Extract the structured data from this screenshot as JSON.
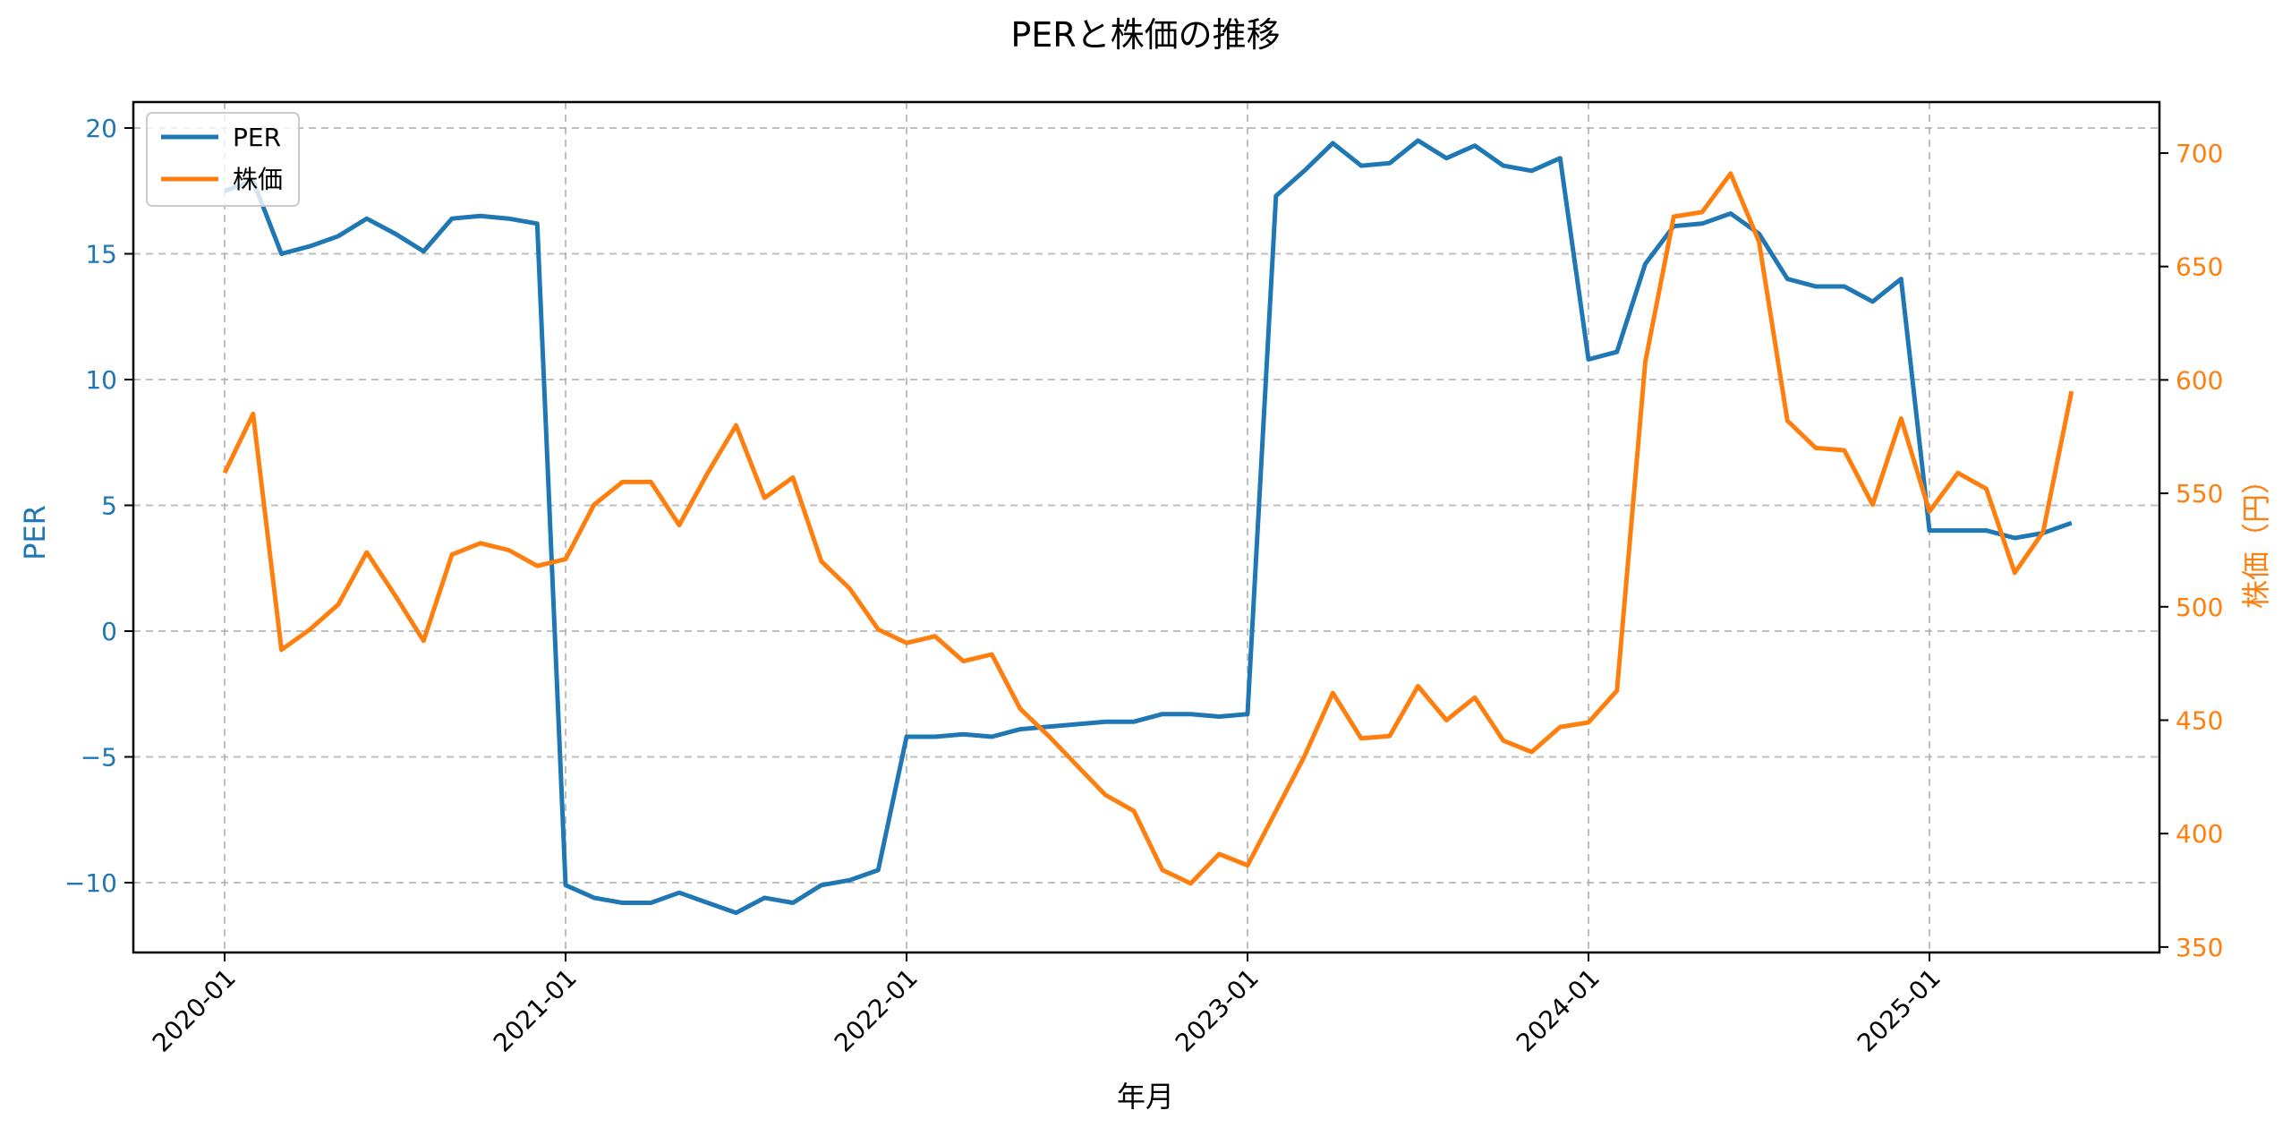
{
  "title": "PERと株価の推移",
  "xlabel": "年月",
  "ylabel_left": "PER",
  "ylabel_right": "株価（円）",
  "legend": [
    {
      "label": "PER",
      "color": "#1f77b4"
    },
    {
      "label": "株価",
      "color": "#ff7f0e"
    }
  ],
  "colors": {
    "per": "#1f77b4",
    "price": "#ff7f0e",
    "grid": "#b0b0b0",
    "axis": "#000000"
  },
  "chart_data": {
    "type": "line",
    "title": "PERと株価の推移",
    "xlabel": "年月",
    "ylabel": "PER",
    "ylabel_right": "株価（円）",
    "x_ticks": [
      "2020-01",
      "2021-01",
      "2022-01",
      "2023-01",
      "2024-01",
      "2025-01"
    ],
    "y_ticks_left": [
      -10,
      -5,
      0,
      5,
      10,
      15,
      20
    ],
    "y_ticks_right": [
      350,
      400,
      450,
      500,
      550,
      600,
      650,
      700
    ],
    "ylim_left": [
      -12.7,
      20.9
    ],
    "ylim_right": [
      345,
      720
    ],
    "grid": true,
    "legend_position": "upper left",
    "x": [
      "2020-01",
      "2020-02",
      "2020-03",
      "2020-04",
      "2020-05",
      "2020-06",
      "2020-07",
      "2020-08",
      "2020-09",
      "2020-10",
      "2020-11",
      "2020-12",
      "2021-01",
      "2021-02",
      "2021-03",
      "2021-04",
      "2021-05",
      "2021-06",
      "2021-07",
      "2021-08",
      "2021-09",
      "2021-10",
      "2021-11",
      "2021-12",
      "2022-01",
      "2022-02",
      "2022-03",
      "2022-04",
      "2022-05",
      "2022-06",
      "2022-07",
      "2022-08",
      "2022-09",
      "2022-10",
      "2022-11",
      "2022-12",
      "2023-01",
      "2023-02",
      "2023-03",
      "2023-04",
      "2023-05",
      "2023-06",
      "2023-07",
      "2023-08",
      "2023-09",
      "2023-10",
      "2023-11",
      "2023-12",
      "2024-01",
      "2024-02",
      "2024-03",
      "2024-04",
      "2024-05",
      "2024-06",
      "2024-07",
      "2024-08",
      "2024-09",
      "2024-10",
      "2024-11",
      "2024-12",
      "2025-01",
      "2025-02",
      "2025-03",
      "2025-04",
      "2025-05",
      "2025-06"
    ],
    "series": [
      {
        "name": "PER",
        "axis": "left",
        "color": "#1f77b4",
        "values": [
          17.5,
          17.9,
          15.0,
          15.3,
          15.7,
          16.4,
          15.8,
          15.1,
          16.4,
          16.5,
          16.4,
          16.2,
          -10.1,
          -10.6,
          -10.8,
          -10.8,
          -10.4,
          -10.8,
          -11.2,
          -10.6,
          -10.8,
          -10.1,
          -9.9,
          -9.5,
          -4.2,
          -4.2,
          -4.1,
          -4.2,
          -3.9,
          -3.8,
          -3.7,
          -3.6,
          -3.6,
          -3.3,
          -3.3,
          -3.4,
          -3.3,
          17.3,
          18.3,
          19.4,
          18.5,
          18.6,
          19.5,
          18.8,
          19.3,
          18.5,
          18.3,
          18.8,
          10.8,
          11.1,
          14.6,
          16.1,
          16.2,
          16.6,
          15.8,
          14.0,
          13.7,
          13.7,
          13.1,
          14.0,
          4.0,
          4.0,
          4.0,
          3.7,
          3.9,
          4.3
        ]
      },
      {
        "name": "株価",
        "axis": "right",
        "color": "#ff7f0e",
        "values": [
          559,
          585,
          481,
          490,
          501,
          524,
          505,
          485,
          523,
          528,
          525,
          518,
          521,
          545,
          555,
          555,
          536,
          559,
          580,
          548,
          557,
          520,
          508,
          490,
          484,
          487,
          476,
          479,
          455,
          443,
          430,
          417,
          410,
          384,
          378,
          391,
          386,
          410,
          434,
          462,
          442,
          443,
          465,
          450,
          460,
          441,
          436,
          447,
          449,
          463,
          608,
          672,
          674,
          691,
          661,
          582,
          570,
          569,
          545,
          583,
          542,
          559,
          552,
          515,
          533,
          595
        ]
      }
    ]
  }
}
